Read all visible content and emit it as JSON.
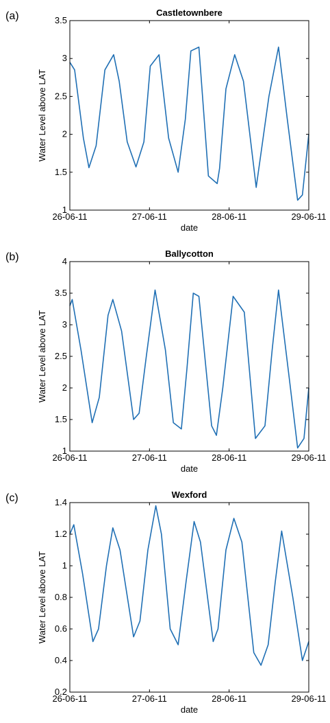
{
  "line_color": "#1f6fb4",
  "chart_data": [
    {
      "type": "line",
      "panel_label": "(a)",
      "title": "Castletownbere",
      "xlabel": "date",
      "ylabel": "Water Level above LAT",
      "xlim": [
        0,
        3
      ],
      "ylim": [
        1,
        3.5
      ],
      "x_tick_labels": [
        "26-06-11",
        "27-06-11",
        "28-06-11",
        "29-06-11"
      ],
      "y_ticks": [
        1,
        1.5,
        2,
        2.5,
        3,
        3.5
      ],
      "y_tick_labels": [
        "1",
        "1.5",
        "2",
        "2.5",
        "3",
        "3.5"
      ],
      "series": [
        {
          "x": [
            0,
            0.06,
            0.17,
            0.24,
            0.33,
            0.44,
            0.55,
            0.62,
            0.72,
            0.83,
            0.93,
            1.01,
            1.12,
            1.24,
            1.36,
            1.45,
            1.52,
            1.62,
            1.74,
            1.85,
            1.88,
            1.96,
            2.07,
            2.18,
            2.34,
            2.5,
            2.62,
            2.73,
            2.86,
            2.92,
            3.0
          ],
          "y": [
            2.95,
            2.85,
            1.95,
            1.56,
            1.85,
            2.85,
            3.05,
            2.7,
            1.9,
            1.57,
            1.9,
            2.9,
            3.05,
            1.95,
            1.5,
            2.2,
            3.1,
            3.15,
            1.45,
            1.35,
            1.55,
            2.6,
            3.05,
            2.7,
            1.3,
            2.5,
            3.15,
            2.2,
            1.13,
            1.2,
            2.0
          ]
        }
      ]
    },
    {
      "type": "line",
      "panel_label": "(b)",
      "title": "Ballycotton",
      "xlabel": "date",
      "ylabel": "Water Level above LAT",
      "xlim": [
        0,
        3
      ],
      "ylim": [
        1,
        4
      ],
      "x_tick_labels": [
        "26-06-11",
        "27-06-11",
        "28-06-11",
        "29-06-11"
      ],
      "y_ticks": [
        1,
        1.5,
        2,
        2.5,
        3,
        3.5,
        4
      ],
      "y_tick_labels": [
        "1",
        "1.5",
        "2",
        "2.5",
        "3",
        "3.5",
        "4"
      ],
      "series": [
        {
          "x": [
            0,
            0.03,
            0.14,
            0.28,
            0.37,
            0.48,
            0.54,
            0.65,
            0.8,
            0.87,
            0.96,
            1.07,
            1.2,
            1.3,
            1.4,
            1.47,
            1.55,
            1.62,
            1.78,
            1.84,
            1.92,
            2.05,
            2.19,
            2.33,
            2.45,
            2.54,
            2.62,
            2.76,
            2.86,
            2.94,
            3.0
          ],
          "y": [
            3.3,
            3.4,
            2.6,
            1.45,
            1.85,
            3.15,
            3.4,
            2.9,
            1.5,
            1.6,
            2.5,
            3.55,
            2.6,
            1.45,
            1.35,
            2.3,
            3.5,
            3.45,
            1.4,
            1.25,
            2.0,
            3.45,
            3.2,
            1.2,
            1.4,
            2.6,
            3.55,
            2.1,
            1.05,
            1.2,
            2.0
          ]
        }
      ]
    },
    {
      "type": "line",
      "panel_label": "(c)",
      "title": "Wexford",
      "xlabel": "date",
      "ylabel": "Water Level above LAT",
      "xlim": [
        0,
        3
      ],
      "ylim": [
        0.2,
        1.4
      ],
      "x_tick_labels": [
        "26-06-11",
        "27-06-11",
        "28-06-11",
        "29-06-11"
      ],
      "y_ticks": [
        0.2,
        0.4,
        0.6,
        0.8,
        1,
        1.2,
        1.4
      ],
      "y_tick_labels": [
        "0.2",
        "0.4",
        "0.6",
        "0.8",
        "1",
        "1.2",
        "1.4"
      ],
      "series": [
        {
          "x": [
            0,
            0.05,
            0.16,
            0.29,
            0.36,
            0.46,
            0.54,
            0.63,
            0.8,
            0.88,
            0.98,
            1.08,
            1.15,
            1.26,
            1.36,
            1.46,
            1.56,
            1.64,
            1.8,
            1.86,
            1.96,
            2.06,
            2.16,
            2.31,
            2.4,
            2.49,
            2.58,
            2.66,
            2.8,
            2.92,
            3.0
          ],
          "y": [
            1.2,
            1.26,
            0.95,
            0.52,
            0.6,
            1.0,
            1.24,
            1.1,
            0.55,
            0.65,
            1.1,
            1.38,
            1.2,
            0.6,
            0.5,
            0.9,
            1.28,
            1.15,
            0.52,
            0.6,
            1.1,
            1.3,
            1.15,
            0.45,
            0.37,
            0.5,
            0.9,
            1.22,
            0.8,
            0.4,
            0.52
          ]
        }
      ]
    }
  ]
}
